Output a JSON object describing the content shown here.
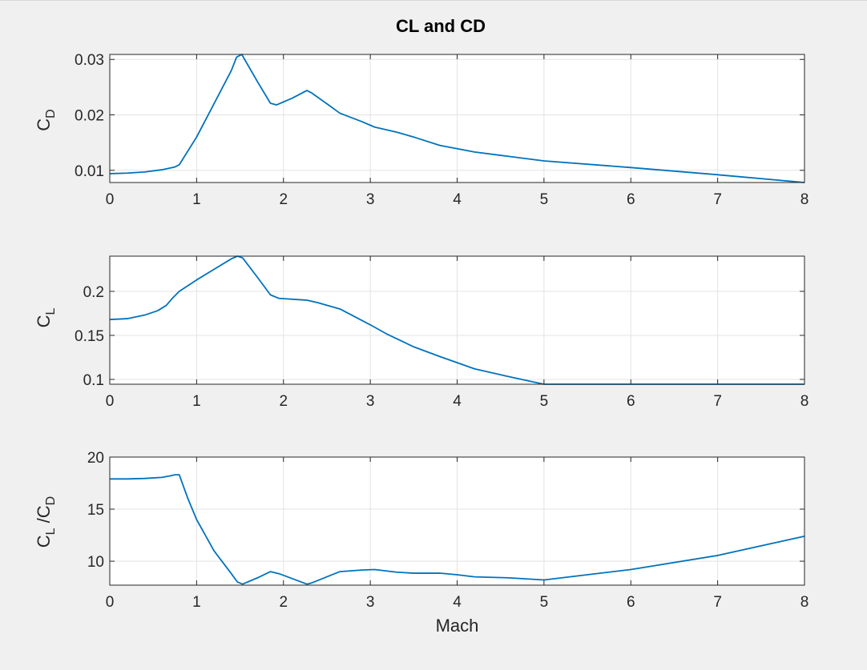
{
  "figure": {
    "title": "CL and CD",
    "line_color": "#0072bd",
    "background": "#f0f0f0"
  },
  "chart_data": [
    {
      "type": "line",
      "title": "CL and CD",
      "xlabel": "",
      "ylabel": {
        "main": "C",
        "sub": "D"
      },
      "xlim": [
        0,
        8
      ],
      "ylim": [
        0.0078,
        0.0309
      ],
      "xticks": [
        0,
        1,
        2,
        3,
        4,
        5,
        6,
        7,
        8
      ],
      "xtick_labels": [
        "0",
        "1",
        "2",
        "3",
        "4",
        "5",
        "6",
        "7",
        "8"
      ],
      "yticks": [
        0.01,
        0.02,
        0.03
      ],
      "ytick_labels": [
        "0.01",
        "0.02",
        "0.03"
      ],
      "grid": true,
      "series": [
        {
          "x": [
            0,
            0.2,
            0.4,
            0.6,
            0.75,
            0.8,
            1.0,
            1.2,
            1.4,
            1.46,
            1.52,
            1.7,
            1.85,
            1.92,
            2.1,
            2.27,
            2.32,
            2.5,
            2.65,
            2.9,
            3.05,
            3.3,
            3.5,
            3.8,
            4.0,
            4.2,
            4.5,
            5.0,
            6.0,
            7.0,
            8.0
          ],
          "y": [
            0.0094,
            0.0095,
            0.0097,
            0.0101,
            0.0106,
            0.011,
            0.016,
            0.022,
            0.028,
            0.0304,
            0.0309,
            0.026,
            0.0221,
            0.0218,
            0.023,
            0.0244,
            0.024,
            0.022,
            0.0203,
            0.0188,
            0.0178,
            0.0169,
            0.016,
            0.0145,
            0.0139,
            0.0133,
            0.0127,
            0.0117,
            0.0105,
            0.0092,
            0.0078
          ]
        }
      ]
    },
    {
      "type": "line",
      "title": "",
      "xlabel": "",
      "ylabel": {
        "main": "C",
        "sub": "L"
      },
      "xlim": [
        0,
        8
      ],
      "ylim": [
        0.0945,
        0.24
      ],
      "xticks": [
        0,
        1,
        2,
        3,
        4,
        5,
        6,
        7,
        8
      ],
      "xtick_labels": [
        "0",
        "1",
        "2",
        "3",
        "4",
        "5",
        "6",
        "7",
        "8"
      ],
      "yticks": [
        0.1,
        0.15,
        0.2
      ],
      "ytick_labels": [
        "0.1",
        "0.15",
        "0.2"
      ],
      "grid": true,
      "series": [
        {
          "x": [
            0,
            0.2,
            0.4,
            0.55,
            0.65,
            0.72,
            0.8,
            1.0,
            1.2,
            1.4,
            1.47,
            1.53,
            1.7,
            1.85,
            1.95,
            2.27,
            2.4,
            2.65,
            3.0,
            3.2,
            3.5,
            3.8,
            4.2,
            4.6,
            5.0,
            6.0,
            7.0,
            8.0
          ],
          "y": [
            0.168,
            0.169,
            0.173,
            0.178,
            0.184,
            0.192,
            0.2,
            0.213,
            0.225,
            0.237,
            0.24,
            0.238,
            0.216,
            0.196,
            0.192,
            0.19,
            0.187,
            0.18,
            0.162,
            0.151,
            0.137,
            0.126,
            0.112,
            0.103,
            0.0945,
            0.0945,
            0.0945,
            0.0945
          ]
        }
      ]
    },
    {
      "type": "line",
      "title": "",
      "xlabel": "Mach",
      "ylabel": {
        "main": "C",
        "sub": "L",
        "mid": " /C",
        "sub2": "D"
      },
      "xlim": [
        0,
        8
      ],
      "ylim": [
        7.7,
        20
      ],
      "xticks": [
        0,
        1,
        2,
        3,
        4,
        5,
        6,
        7,
        8
      ],
      "xtick_labels": [
        "0",
        "1",
        "2",
        "3",
        "4",
        "5",
        "6",
        "7",
        "8"
      ],
      "yticks": [
        10,
        15,
        20
      ],
      "ytick_labels": [
        "10",
        "15",
        "20"
      ],
      "grid": true,
      "series": [
        {
          "x": [
            0,
            0.2,
            0.4,
            0.6,
            0.7,
            0.75,
            0.8,
            0.9,
            1.0,
            1.2,
            1.4,
            1.47,
            1.53,
            1.7,
            1.85,
            1.95,
            2.27,
            2.32,
            2.5,
            2.65,
            2.9,
            3.05,
            3.3,
            3.5,
            3.8,
            4.0,
            4.2,
            4.6,
            5.0,
            6.0,
            7.0,
            8.0
          ],
          "y": [
            17.9,
            17.9,
            17.95,
            18.05,
            18.2,
            18.3,
            18.3,
            16.0,
            14.0,
            11.0,
            8.8,
            8.0,
            7.8,
            8.4,
            9.0,
            8.8,
            7.8,
            7.9,
            8.5,
            9.0,
            9.15,
            9.2,
            8.95,
            8.85,
            8.85,
            8.7,
            8.5,
            8.4,
            8.2,
            9.2,
            10.55,
            12.4
          ]
        }
      ]
    }
  ]
}
